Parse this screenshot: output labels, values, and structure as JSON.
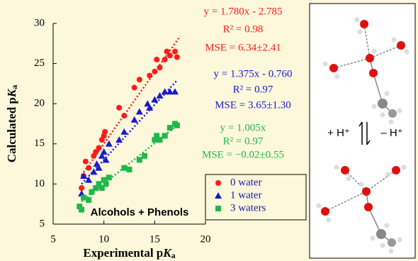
{
  "chart_data": {
    "type": "scatter",
    "xlabel_parts": [
      "Experimental p",
      "K",
      "a"
    ],
    "ylabel_parts": [
      "Calculated p",
      "K",
      "a"
    ],
    "xlim": [
      5,
      20
    ],
    "xticks": [
      5,
      10,
      15,
      20
    ],
    "ylim": [
      5,
      30
    ],
    "yticks": [
      5,
      10,
      15,
      20,
      25,
      30
    ],
    "inset_label": "Alcohols + Phenols",
    "series": [
      {
        "name": "0 water",
        "color": "#ff1a1a",
        "marker": "circle",
        "x": [
          7.8,
          8.0,
          8.2,
          8.5,
          9.0,
          9.2,
          9.5,
          9.8,
          10.0,
          10.1,
          11.5,
          12.0,
          13.0,
          13.5,
          14.5,
          15.0,
          15.2,
          15.5,
          16.0,
          16.2,
          16.5,
          17.0,
          17.2
        ],
        "values": [
          9.5,
          11.0,
          12.8,
          12.0,
          13.5,
          14.0,
          14.5,
          15.5,
          16.0,
          16.5,
          19.5,
          18.5,
          22.0,
          23.0,
          23.5,
          24.0,
          25.5,
          24.5,
          25.5,
          26.5,
          26.0,
          26.5,
          25.8
        ],
        "trend_x": [
          7.8,
          17.5
        ],
        "trend_y": [
          11.1,
          28.4
        ],
        "equation": [
          "y = 1.780x - 2.785",
          "R² = 0.98",
          "MSE = 6.34±2.41"
        ]
      },
      {
        "name": "1 water",
        "color": "#1a1ad0",
        "marker": "triangle",
        "x": [
          7.8,
          8.0,
          8.5,
          9.0,
          9.3,
          9.5,
          9.8,
          10.0,
          10.2,
          10.5,
          11.5,
          12.0,
          13.0,
          13.5,
          14.3,
          14.5,
          15.0,
          15.5,
          16.0,
          16.5,
          17.0
        ],
        "values": [
          8.8,
          11.0,
          10.5,
          11.5,
          12.5,
          12.0,
          13.5,
          14.0,
          13.0,
          15.0,
          15.5,
          16.5,
          18.0,
          19.0,
          20.0,
          19.5,
          20.5,
          21.0,
          21.5,
          21.5,
          21.5
        ],
        "trend_x": [
          7.8,
          17.2
        ],
        "trend_y": [
          10.0,
          22.9
        ],
        "equation": [
          "y = 1.375x - 0.760",
          "R² = 0.97",
          "MSE = 3.65±1.30"
        ]
      },
      {
        "name": "3 waters",
        "color": "#1fb84a",
        "marker": "square",
        "x": [
          7.6,
          7.8,
          8.0,
          8.5,
          8.8,
          9.2,
          9.5,
          9.8,
          10.0,
          10.2,
          10.5,
          12.0,
          12.5,
          13.5,
          14.0,
          15.0,
          15.2,
          15.5,
          16.0,
          16.5,
          17.0,
          17.2
        ],
        "values": [
          7.2,
          6.8,
          8.3,
          8.0,
          9.0,
          9.5,
          10.0,
          9.5,
          10.5,
          10.0,
          10.8,
          12.0,
          11.8,
          13.0,
          13.5,
          15.5,
          16.0,
          15.5,
          16.0,
          17.0,
          17.5,
          17.3
        ],
        "trend_x": [
          7.8,
          17.2
        ],
        "trend_y": [
          7.8,
          17.3
        ],
        "equation": [
          "y = 1.005x",
          "R² = 0.97",
          "MSE = −0.02±0.55"
        ]
      }
    ]
  },
  "diagram": {
    "protonate": "+ H⁺",
    "deprotonate": "– H⁺"
  }
}
